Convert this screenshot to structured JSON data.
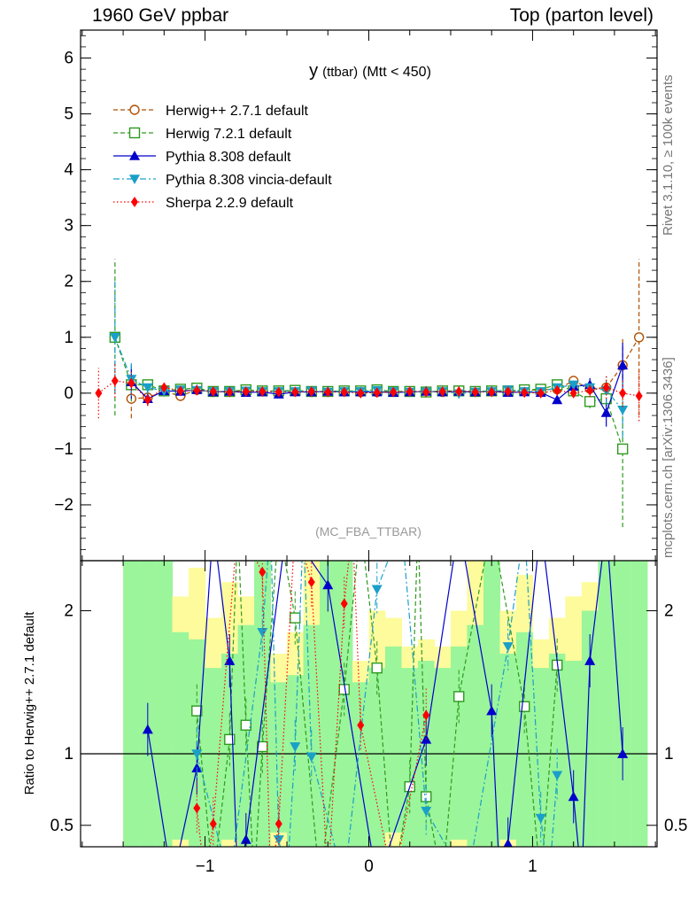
{
  "header": {
    "left": "1960 GeV ppbar",
    "right": "Top (parton level)"
  },
  "side_labels": {
    "top": "Rivet 3.1.10, ≥ 100k events",
    "bottom": "mcplots.cern.ch [arXiv:1306.3436]"
  },
  "colors": {
    "herwigpp": "#b05000",
    "herwig7": "#2e9a1e",
    "pythia": "#0000cc",
    "vincia": "#1aa0c8",
    "sherpa": "#ff0000",
    "band_green": "#9bf59b",
    "band_yellow": "#fdfb9b"
  },
  "chart_data": [
    {
      "type": "scatter",
      "title": "y (ttbar) (Mtt < 450)",
      "title_main": "y",
      "title_sub": "(ttbar)",
      "title_rest": "(Mtt < 450)",
      "watermark": "(MC_FBA_TTBAR)",
      "xlim": [
        -1.76,
        1.76
      ],
      "ylim": [
        -3,
        6.5
      ],
      "xticks": [
        -1,
        0,
        1
      ],
      "yticks": [
        -2,
        -1,
        0,
        1,
        2,
        3,
        4,
        5,
        6
      ],
      "x": [
        -1.65,
        -1.55,
        -1.45,
        -1.35,
        -1.25,
        -1.15,
        -1.05,
        -0.95,
        -0.85,
        -0.75,
        -0.65,
        -0.55,
        -0.45,
        -0.35,
        -0.25,
        -0.15,
        -0.05,
        0.05,
        0.15,
        0.25,
        0.35,
        0.45,
        0.55,
        0.65,
        0.75,
        0.85,
        0.95,
        1.05,
        1.15,
        1.25,
        1.35,
        1.45,
        1.55,
        1.65
      ],
      "series": [
        {
          "name": "Herwig++ 2.7.1 default",
          "marker": "circle-open",
          "line": "dashed",
          "color_key": "herwigpp",
          "values": [
            null,
            null,
            -0.1,
            -0.08,
            0.03,
            -0.05,
            0.06,
            0.02,
            0.03,
            0.04,
            0.03,
            0.04,
            0.03,
            0.02,
            0.03,
            0.03,
            0.02,
            0.02,
            0.03,
            0.03,
            0.03,
            0.02,
            0.04,
            0.03,
            0.04,
            0.03,
            0.05,
            0.06,
            0.07,
            0.22,
            0.08,
            0.1,
            0.5,
            1.0
          ],
          "errors": [
            0,
            0,
            0.35,
            0.15,
            0.06,
            0.05,
            0.05,
            0.04,
            0.04,
            0.04,
            0.04,
            0.04,
            0.04,
            0.04,
            0.04,
            0.04,
            0.04,
            0.04,
            0.04,
            0.04,
            0.04,
            0.04,
            0.04,
            0.04,
            0.04,
            0.04,
            0.05,
            0.05,
            0.06,
            0.08,
            0.12,
            0.2,
            0.5,
            1.4
          ]
        },
        {
          "name": "Herwig 7.2.1 default",
          "marker": "square-open",
          "line": "dashed",
          "color_key": "herwig7",
          "values": [
            null,
            1.0,
            0.15,
            0.15,
            0.04,
            0.07,
            0.09,
            0.03,
            0.03,
            0.06,
            0.04,
            0.04,
            0.05,
            0.03,
            0.03,
            0.04,
            0.04,
            0.06,
            0.03,
            0.03,
            0.02,
            0.04,
            0.04,
            0.03,
            0.04,
            0.04,
            0.06,
            0.07,
            0.15,
            0.04,
            -0.15,
            -0.1,
            -1.0,
            null
          ],
          "errors": [
            0,
            1.4,
            0.3,
            0.12,
            0.06,
            0.05,
            0.05,
            0.04,
            0.04,
            0.04,
            0.04,
            0.04,
            0.04,
            0.04,
            0.04,
            0.04,
            0.04,
            0.04,
            0.04,
            0.04,
            0.04,
            0.04,
            0.04,
            0.04,
            0.04,
            0.04,
            0.05,
            0.05,
            0.06,
            0.08,
            0.12,
            0.25,
            1.4,
            0
          ]
        },
        {
          "name": "Pythia 8.308 default",
          "marker": "triangle-up",
          "line": "solid",
          "color_key": "pythia",
          "values": [
            null,
            null,
            0.2,
            -0.1,
            0.04,
            0.03,
            0.06,
            0.02,
            0.03,
            0.01,
            0.02,
            -0.02,
            0.02,
            0.02,
            0.03,
            0.02,
            0.02,
            0.02,
            0.01,
            0.02,
            0.03,
            0.02,
            0.03,
            0.02,
            0.03,
            0.01,
            0.02,
            0.01,
            -0.12,
            0.12,
            0.15,
            -0.35,
            0.5,
            null
          ],
          "errors": [
            0,
            0,
            0.3,
            0.12,
            0.06,
            0.05,
            0.05,
            0.04,
            0.04,
            0.04,
            0.04,
            0.04,
            0.04,
            0.04,
            0.04,
            0.04,
            0.04,
            0.04,
            0.04,
            0.04,
            0.04,
            0.04,
            0.04,
            0.04,
            0.04,
            0.04,
            0.05,
            0.05,
            0.06,
            0.08,
            0.12,
            0.25,
            0.4,
            0
          ]
        },
        {
          "name": "Pythia 8.308 vincia-default",
          "marker": "triangle-down",
          "line": "dashdot",
          "color_key": "vincia",
          "values": [
            null,
            1.0,
            0.25,
            0.1,
            0.04,
            0.06,
            0.05,
            0.03,
            0.03,
            0.04,
            0.03,
            0.03,
            0.03,
            0.04,
            0.02,
            0.03,
            0.03,
            0.05,
            0.03,
            0.02,
            0.02,
            0.03,
            -0.01,
            0.02,
            0.03,
            0.06,
            0.03,
            0.03,
            0.1,
            0.15,
            0.1,
            0.05,
            -0.3,
            null
          ],
          "errors": [
            0,
            1.0,
            0.3,
            0.12,
            0.06,
            0.05,
            0.05,
            0.04,
            0.04,
            0.04,
            0.04,
            0.04,
            0.04,
            0.04,
            0.04,
            0.04,
            0.04,
            0.04,
            0.04,
            0.04,
            0.04,
            0.04,
            0.04,
            0.04,
            0.04,
            0.04,
            0.05,
            0.05,
            0.06,
            0.08,
            0.12,
            0.25,
            0.5,
            0
          ]
        },
        {
          "name": "Sherpa 2.2.9 default",
          "marker": "diamond",
          "line": "dotted",
          "color_key": "sherpa",
          "values": [
            0.0,
            0.22,
            0.18,
            -0.12,
            0.1,
            0.04,
            0.05,
            0.03,
            0.02,
            0.03,
            0.03,
            0.02,
            0.02,
            0.03,
            0.02,
            0.02,
            0.0,
            0.01,
            0.02,
            0.03,
            0.02,
            0.03,
            0.03,
            0.02,
            0.02,
            0.03,
            0.01,
            0.0,
            0.05,
            0.0,
            0.05,
            0.1,
            0.0,
            -0.05
          ],
          "errors": [
            0.45,
            0.3,
            0.2,
            0.1,
            0.06,
            0.05,
            0.05,
            0.04,
            0.04,
            0.04,
            0.04,
            0.04,
            0.04,
            0.04,
            0.04,
            0.04,
            0.04,
            0.04,
            0.04,
            0.04,
            0.04,
            0.04,
            0.04,
            0.04,
            0.04,
            0.04,
            0.05,
            0.05,
            0.06,
            0.08,
            0.12,
            0.2,
            0.25,
            0.45
          ]
        }
      ],
      "legend": "top-left"
    },
    {
      "type": "line",
      "ylabel": "Ratio to Herwig++ 2.7.1 default",
      "xlim": [
        -1.76,
        1.76
      ],
      "ylim": [
        0.35,
        2.35
      ],
      "xticks": [
        -1,
        0,
        1
      ],
      "yticks": [
        0.5,
        1,
        2
      ],
      "reference": 1,
      "bands": [
        {
          "x": -1.45,
          "green": [
            0.35,
            2.35
          ],
          "yellow": [
            0.35,
            2.35
          ]
        },
        {
          "x": -1.35,
          "green": [
            0.35,
            2.35
          ],
          "yellow": [
            0.35,
            2.35
          ]
        },
        {
          "x": -1.25,
          "green": [
            0.35,
            2.35
          ],
          "yellow": [
            0.35,
            2.35
          ]
        },
        {
          "x": -1.15,
          "green": [
            0.4,
            1.85
          ],
          "yellow": [
            0.35,
            2.1
          ]
        },
        {
          "x": -1.05,
          "green": [
            0.35,
            1.8
          ],
          "yellow": [
            0.35,
            2.3
          ]
        },
        {
          "x": -0.95,
          "green": [
            0.35,
            1.6
          ],
          "yellow": [
            0.35,
            1.95
          ]
        },
        {
          "x": -0.85,
          "green": [
            0.4,
            1.7
          ],
          "yellow": [
            0.35,
            2.2
          ]
        },
        {
          "x": -0.75,
          "green": [
            0.35,
            1.9
          ],
          "yellow": [
            0.35,
            2.1
          ]
        },
        {
          "x": -0.65,
          "green": [
            0.35,
            2.35
          ],
          "yellow": [
            0.35,
            2.35
          ]
        },
        {
          "x": -0.55,
          "green": [
            0.45,
            1.5
          ],
          "yellow": [
            0.35,
            1.7
          ]
        },
        {
          "x": -0.45,
          "green": [
            0.35,
            1.55
          ],
          "yellow": [
            0.35,
            1.85
          ]
        },
        {
          "x": -0.35,
          "green": [
            0.35,
            1.9
          ],
          "yellow": [
            0.35,
            2.35
          ]
        },
        {
          "x": -0.25,
          "green": [
            0.35,
            2.35
          ],
          "yellow": [
            0.35,
            2.35
          ]
        },
        {
          "x": -0.15,
          "green": [
            0.35,
            2.35
          ],
          "yellow": [
            0.35,
            2.35
          ]
        },
        {
          "x": -0.05,
          "green": [
            0.35,
            1.5
          ],
          "yellow": [
            0.35,
            1.65
          ]
        },
        {
          "x": 0.05,
          "green": [
            0.35,
            1.6
          ],
          "yellow": [
            0.35,
            2.0
          ]
        },
        {
          "x": 0.15,
          "green": [
            0.45,
            1.75
          ],
          "yellow": [
            0.35,
            1.95
          ]
        },
        {
          "x": 0.25,
          "green": [
            0.35,
            1.6
          ],
          "yellow": [
            0.35,
            1.75
          ]
        },
        {
          "x": 0.35,
          "green": [
            0.35,
            1.65
          ],
          "yellow": [
            0.35,
            1.8
          ]
        },
        {
          "x": 0.45,
          "green": [
            0.35,
            1.6
          ],
          "yellow": [
            0.35,
            1.75
          ]
        },
        {
          "x": 0.55,
          "green": [
            0.4,
            1.75
          ],
          "yellow": [
            0.35,
            2.0
          ]
        },
        {
          "x": 0.65,
          "green": [
            0.35,
            1.9
          ],
          "yellow": [
            0.35,
            2.35
          ]
        },
        {
          "x": 0.75,
          "green": [
            0.35,
            2.35
          ],
          "yellow": [
            0.35,
            2.35
          ]
        },
        {
          "x": 0.85,
          "green": [
            0.4,
            1.7
          ],
          "yellow": [
            0.35,
            2.0
          ]
        },
        {
          "x": 0.95,
          "green": [
            0.35,
            1.85
          ],
          "yellow": [
            0.35,
            2.25
          ]
        },
        {
          "x": 1.05,
          "green": [
            0.35,
            1.6
          ],
          "yellow": [
            0.35,
            1.8
          ]
        },
        {
          "x": 1.15,
          "green": [
            0.35,
            1.7
          ],
          "yellow": [
            0.35,
            1.95
          ]
        },
        {
          "x": 1.25,
          "green": [
            0.35,
            1.65
          ],
          "yellow": [
            0.35,
            2.1
          ]
        },
        {
          "x": 1.35,
          "green": [
            0.35,
            2.0
          ],
          "yellow": [
            0.35,
            2.2
          ]
        },
        {
          "x": 1.45,
          "green": [
            0.35,
            2.35
          ],
          "yellow": [
            0.35,
            2.35
          ]
        },
        {
          "x": 1.55,
          "green": [
            0.35,
            2.35
          ],
          "yellow": [
            0.35,
            2.35
          ]
        },
        {
          "x": 1.65,
          "green": [
            0.35,
            2.35
          ],
          "yellow": [
            0.35,
            2.35
          ]
        }
      ],
      "series": [
        {
          "name": "Herwig 7.2.1 default",
          "color_key": "herwig7",
          "marker": "square-open",
          "line": "dashed",
          "x": [
            -1.05,
            -0.85,
            -0.75,
            -0.65,
            -0.45,
            -0.15,
            0.05,
            0.25,
            0.35,
            0.55,
            0.95,
            1.15
          ],
          "values": [
            1.3,
            1.1,
            1.2,
            1.05,
            1.95,
            1.45,
            1.6,
            0.77,
            0.7,
            1.4,
            1.33,
            1.62
          ]
        },
        {
          "name": "Pythia 8.308 default",
          "color_key": "pythia",
          "marker": "triangle-up",
          "line": "solid",
          "x": [
            -1.35,
            -1.05,
            -0.85,
            -0.75,
            -0.25,
            0.35,
            0.75,
            0.85,
            1.25,
            1.35,
            1.55
          ],
          "values": [
            1.17,
            0.9,
            1.65,
            0.4,
            2.18,
            1.1,
            1.3,
            0.37,
            0.7,
            1.65,
            1.0
          ]
        },
        {
          "name": "Pythia 8.308 vincia-default",
          "color_key": "vincia",
          "marker": "triangle-down",
          "line": "dashdot",
          "x": [
            -1.05,
            -0.65,
            -0.55,
            -0.45,
            -0.35,
            0.05,
            0.35,
            0.85,
            1.05,
            1.15
          ],
          "values": [
            1.0,
            1.85,
            0.4,
            1.05,
            0.98,
            2.15,
            0.6,
            1.75,
            0.55,
            0.85
          ]
        },
        {
          "name": "Sherpa 2.2.9 default",
          "color_key": "sherpa",
          "marker": "diamond",
          "line": "dotted",
          "x": [
            -1.05,
            -0.95,
            -0.65,
            -0.55,
            -0.35,
            -0.15,
            -0.05,
            0.35
          ],
          "values": [
            0.62,
            0.51,
            2.27,
            0.51,
            2.2,
            2.05,
            1.2,
            1.27
          ]
        }
      ]
    }
  ]
}
